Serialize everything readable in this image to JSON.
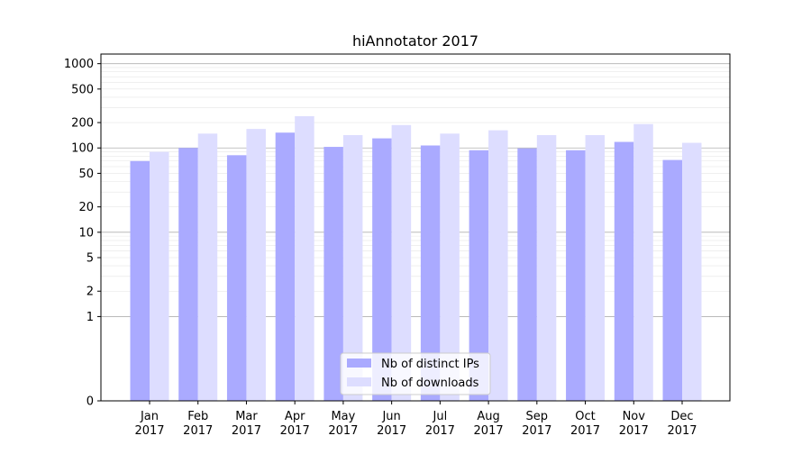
{
  "chart_data": {
    "type": "bar",
    "title": "hiAnnotator 2017",
    "xlabel": "",
    "ylabel": "",
    "yscale": "symlog",
    "ylim": [
      0,
      1300
    ],
    "yticks": [
      0,
      1,
      2,
      5,
      10,
      20,
      50,
      100,
      200,
      500,
      1000
    ],
    "ytick_labels": [
      "0",
      "1",
      "2",
      "5",
      "10",
      "20",
      "50",
      "100",
      "200",
      "500",
      "1000"
    ],
    "grid": true,
    "legend_position": "bottom-center",
    "categories": [
      "Jan\n2017",
      "Feb\n2017",
      "Mar\n2017",
      "Apr\n2017",
      "May\n2017",
      "Jun\n2017",
      "Jul\n2017",
      "Aug\n2017",
      "Sep\n2017",
      "Oct\n2017",
      "Nov\n2017",
      "Dec\n2017"
    ],
    "series": [
      {
        "name": "Nb of distinct IPs",
        "color": "#aaaaff",
        "values": [
          70,
          100,
          82,
          152,
          103,
          130,
          107,
          94,
          99,
          94,
          118,
          72
        ]
      },
      {
        "name": "Nb of downloads",
        "color": "#ddddff",
        "values": [
          90,
          148,
          168,
          238,
          142,
          187,
          148,
          162,
          142,
          142,
          192,
          115
        ]
      }
    ]
  }
}
